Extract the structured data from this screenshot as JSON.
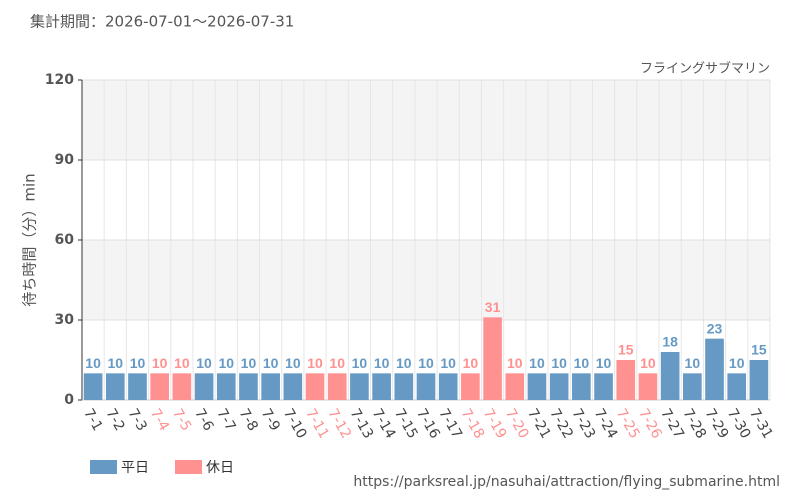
{
  "chart_data": {
    "type": "bar",
    "subtitle": "集計期間：2026-07-01～2026-07-31",
    "title": "フライングサブマリン",
    "y_label": "待ち時間（分）min",
    "source": "https://parksreal.jp/nasuhai/attraction/flying_submarine.html",
    "categories": [
      "7-1",
      "7-2",
      "7-3",
      "7-4",
      "7-5",
      "7-6",
      "7-7",
      "7-8",
      "7-9",
      "7-10",
      "7-11",
      "7-12",
      "7-13",
      "7-14",
      "7-15",
      "7-16",
      "7-17",
      "7-18",
      "7-19",
      "7-20",
      "7-21",
      "7-22",
      "7-23",
      "7-24",
      "7-25",
      "7-26",
      "7-27",
      "7-28",
      "7-29",
      "7-30",
      "7-31"
    ],
    "series": [
      {
        "name": "平日",
        "color": "#6699c4",
        "values": [
          10,
          10,
          10,
          null,
          null,
          10,
          10,
          10,
          10,
          10,
          null,
          null,
          10,
          10,
          10,
          10,
          10,
          null,
          null,
          null,
          10,
          10,
          10,
          10,
          null,
          null,
          18,
          10,
          23,
          10,
          15
        ]
      },
      {
        "name": "休日",
        "color": "#ff9191",
        "values": [
          null,
          null,
          null,
          10,
          10,
          null,
          null,
          null,
          null,
          null,
          10,
          10,
          null,
          null,
          null,
          null,
          null,
          10,
          31,
          10,
          null,
          null,
          null,
          null,
          15,
          10,
          null,
          null,
          null,
          null,
          null
        ]
      }
    ],
    "ylim": [
      0,
      120
    ],
    "yticks": [
      0,
      30,
      60,
      90,
      120
    ],
    "grid": true
  }
}
